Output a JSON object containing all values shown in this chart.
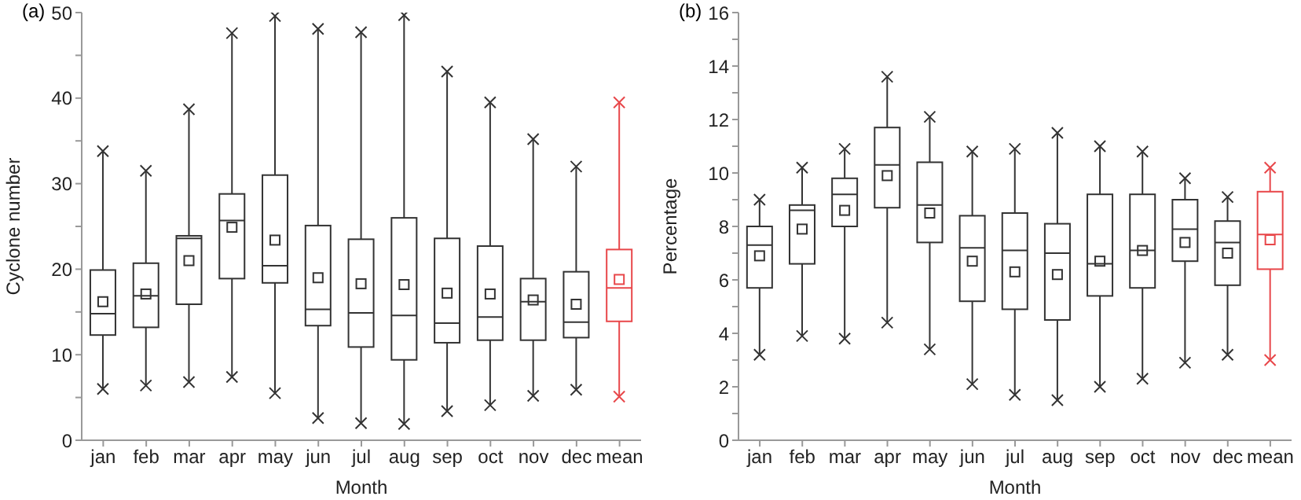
{
  "chart_data": [
    {
      "type": "box",
      "title": "(a)",
      "xlabel": "Month",
      "ylabel": "Cyclone number",
      "categories": [
        "jan",
        "feb",
        "mar",
        "apr",
        "may",
        "jun",
        "jul",
        "aug",
        "sep",
        "oct",
        "nov",
        "dec",
        "mean"
      ],
      "colors": [
        "#333333",
        "#333333",
        "#333333",
        "#333333",
        "#333333",
        "#333333",
        "#333333",
        "#333333",
        "#333333",
        "#333333",
        "#333333",
        "#333333",
        "#e8474a"
      ],
      "marker": "cross",
      "ylim": [
        0,
        50
      ],
      "yticks": [
        0,
        {
          "value": 5,
          "label": null
        },
        10,
        {
          "value": 15,
          "label": null
        },
        20,
        {
          "value": 25,
          "label": null
        },
        30,
        {
          "value": 35,
          "label": null
        },
        40,
        {
          "value": 45,
          "label": null
        },
        50
      ],
      "boxes": [
        {
          "low": 6.0,
          "q1": 12.3,
          "median": 14.8,
          "q3": 19.9,
          "high": 33.8,
          "mean": 16.2,
          "outliers": [
            6.0,
            33.8
          ]
        },
        {
          "low": 6.4,
          "q1": 13.2,
          "median": 16.9,
          "q3": 20.7,
          "high": 31.5,
          "mean": 17.1,
          "outliers": [
            6.4,
            31.5
          ]
        },
        {
          "low": 6.8,
          "q1": 15.9,
          "median": 23.6,
          "q3": 23.9,
          "high": 38.7,
          "mean": 21.0,
          "outliers": [
            6.8,
            38.7
          ]
        },
        {
          "low": 7.4,
          "q1": 18.9,
          "median": 25.7,
          "q3": 28.8,
          "high": 47.6,
          "mean": 24.9,
          "outliers": [
            7.4,
            47.6
          ]
        },
        {
          "low": 5.5,
          "q1": 18.4,
          "median": 20.4,
          "q3": 31.0,
          "high": 49.6,
          "mean": 23.4,
          "outliers": [
            5.5,
            49.6
          ]
        },
        {
          "low": 2.6,
          "q1": 13.4,
          "median": 15.3,
          "q3": 25.1,
          "high": 48.1,
          "mean": 19.0,
          "outliers": [
            2.6,
            48.1
          ]
        },
        {
          "low": 2.0,
          "q1": 10.9,
          "median": 14.9,
          "q3": 23.5,
          "high": 47.7,
          "mean": 18.3,
          "outliers": [
            2.0,
            47.7
          ]
        },
        {
          "low": 1.9,
          "q1": 9.4,
          "median": 14.6,
          "q3": 26.0,
          "high": 49.7,
          "mean": 18.2,
          "outliers": [
            1.9,
            49.7
          ]
        },
        {
          "low": 3.4,
          "q1": 11.4,
          "median": 13.7,
          "q3": 23.6,
          "high": 43.1,
          "mean": 17.2,
          "outliers": [
            3.4,
            43.1
          ]
        },
        {
          "low": 4.1,
          "q1": 11.7,
          "median": 14.4,
          "q3": 22.7,
          "high": 39.5,
          "mean": 17.1,
          "outliers": [
            4.1,
            39.5
          ]
        },
        {
          "low": 5.2,
          "q1": 11.7,
          "median": 16.2,
          "q3": 18.9,
          "high": 35.2,
          "mean": 16.4,
          "outliers": [
            5.2,
            35.2
          ]
        },
        {
          "low": 5.9,
          "q1": 12.0,
          "median": 13.8,
          "q3": 19.7,
          "high": 32.0,
          "mean": 15.9,
          "outliers": [
            5.9,
            32.0
          ]
        },
        {
          "low": 5.1,
          "q1": 13.9,
          "median": 17.8,
          "q3": 22.3,
          "high": 39.5,
          "mean": 18.8,
          "outliers": [
            5.1,
            39.5
          ]
        }
      ]
    },
    {
      "type": "box",
      "title": "(b)",
      "xlabel": "Month",
      "ylabel": "Percentage",
      "categories": [
        "jan",
        "feb",
        "mar",
        "apr",
        "may",
        "jun",
        "jul",
        "aug",
        "sep",
        "oct",
        "nov",
        "dec",
        "mean"
      ],
      "colors": [
        "#333333",
        "#333333",
        "#333333",
        "#333333",
        "#333333",
        "#333333",
        "#333333",
        "#333333",
        "#333333",
        "#333333",
        "#333333",
        "#333333",
        "#e8474a"
      ],
      "marker": "cross",
      "ylim": [
        0,
        16
      ],
      "yticks": [
        0,
        {
          "value": 1,
          "label": null
        },
        2,
        {
          "value": 3,
          "label": null
        },
        4,
        {
          "value": 5,
          "label": null
        },
        6,
        {
          "value": 7,
          "label": null
        },
        8,
        {
          "value": 9,
          "label": null
        },
        10,
        {
          "value": 11,
          "label": null
        },
        12,
        {
          "value": 13,
          "label": null
        },
        14,
        {
          "value": 15,
          "label": null
        },
        16
      ],
      "boxes": [
        {
          "low": 3.2,
          "q1": 5.7,
          "median": 7.3,
          "q3": 8.0,
          "high": 9.0,
          "mean": 6.9,
          "outliers": [
            3.2,
            9.0
          ]
        },
        {
          "low": 3.9,
          "q1": 6.6,
          "median": 8.6,
          "q3": 8.8,
          "high": 10.2,
          "mean": 7.9,
          "outliers": [
            3.9,
            10.2
          ]
        },
        {
          "low": 3.8,
          "q1": 8.0,
          "median": 9.2,
          "q3": 9.8,
          "high": 10.9,
          "mean": 8.6,
          "outliers": [
            3.8,
            10.9
          ]
        },
        {
          "low": 4.4,
          "q1": 8.7,
          "median": 10.3,
          "q3": 11.7,
          "high": 13.6,
          "mean": 9.9,
          "outliers": [
            4.4,
            13.6
          ]
        },
        {
          "low": 3.4,
          "q1": 7.4,
          "median": 8.8,
          "q3": 10.4,
          "high": 12.1,
          "mean": 8.5,
          "outliers": [
            3.4,
            12.1
          ]
        },
        {
          "low": 2.1,
          "q1": 5.2,
          "median": 7.2,
          "q3": 8.4,
          "high": 10.8,
          "mean": 6.7,
          "outliers": [
            2.1,
            10.8
          ]
        },
        {
          "low": 1.7,
          "q1": 4.9,
          "median": 7.1,
          "q3": 8.5,
          "high": 10.9,
          "mean": 6.3,
          "outliers": [
            1.7,
            10.9
          ]
        },
        {
          "low": 1.5,
          "q1": 4.5,
          "median": 7.0,
          "q3": 8.1,
          "high": 11.5,
          "mean": 6.2,
          "outliers": [
            1.5,
            11.5
          ]
        },
        {
          "low": 2.0,
          "q1": 5.4,
          "median": 6.6,
          "q3": 9.2,
          "high": 11.0,
          "mean": 6.7,
          "outliers": [
            2.0,
            11.0
          ]
        },
        {
          "low": 2.3,
          "q1": 5.7,
          "median": 7.1,
          "q3": 9.2,
          "high": 10.8,
          "mean": 7.1,
          "outliers": [
            2.3,
            10.8
          ]
        },
        {
          "low": 2.9,
          "q1": 6.7,
          "median": 7.9,
          "q3": 9.0,
          "high": 9.8,
          "mean": 7.4,
          "outliers": [
            2.9,
            9.8
          ]
        },
        {
          "low": 3.2,
          "q1": 5.8,
          "median": 7.4,
          "q3": 8.2,
          "high": 9.1,
          "mean": 7.0,
          "outliers": [
            3.2,
            9.1
          ]
        },
        {
          "low": 3.0,
          "q1": 6.4,
          "median": 7.7,
          "q3": 9.3,
          "high": 10.2,
          "mean": 7.5,
          "outliers": [
            3.0,
            10.2
          ]
        }
      ]
    }
  ]
}
